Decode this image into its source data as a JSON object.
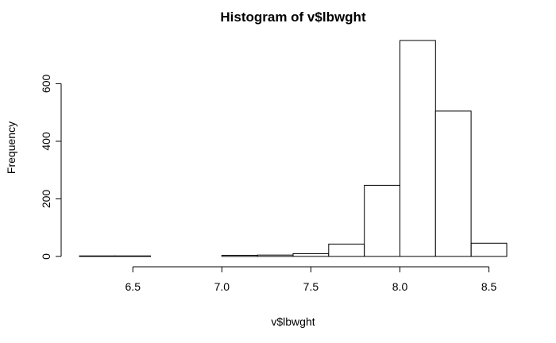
{
  "chart_data": {
    "type": "histogram",
    "title": "Histogram of v$lbwght",
    "xlabel": "v$lbwght",
    "ylabel": "Frequency",
    "bins": [
      {
        "start": 6.2,
        "end": 6.4,
        "count": 2
      },
      {
        "start": 6.4,
        "end": 6.6,
        "count": 2
      },
      {
        "start": 6.6,
        "end": 6.8,
        "count": 0
      },
      {
        "start": 6.8,
        "end": 7.0,
        "count": 0
      },
      {
        "start": 7.0,
        "end": 7.2,
        "count": 4
      },
      {
        "start": 7.2,
        "end": 7.4,
        "count": 5
      },
      {
        "start": 7.4,
        "end": 7.6,
        "count": 10
      },
      {
        "start": 7.6,
        "end": 7.8,
        "count": 43
      },
      {
        "start": 7.8,
        "end": 8.0,
        "count": 247
      },
      {
        "start": 8.0,
        "end": 8.2,
        "count": 750
      },
      {
        "start": 8.2,
        "end": 8.4,
        "count": 505
      },
      {
        "start": 8.4,
        "end": 8.6,
        "count": 46
      }
    ],
    "xticks": [
      6.5,
      7.0,
      7.5,
      8.0,
      8.5
    ],
    "xtick_labels": [
      "6.5",
      "7.0",
      "7.5",
      "8.0",
      "8.5"
    ],
    "yticks": [
      0,
      200,
      400,
      600
    ],
    "ytick_labels": [
      "0",
      "200",
      "400",
      "600"
    ],
    "xlim": [
      6.2,
      8.6
    ],
    "ylim": [
      0,
      750
    ],
    "grid": false
  }
}
